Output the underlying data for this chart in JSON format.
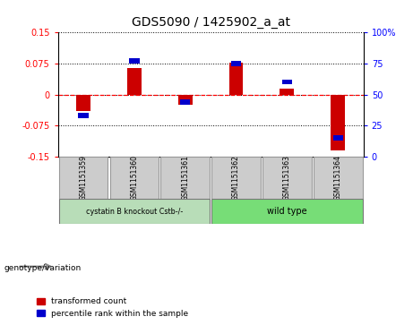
{
  "title": "GDS5090 / 1425902_a_at",
  "samples": [
    "GSM1151359",
    "GSM1151360",
    "GSM1151361",
    "GSM1151362",
    "GSM1151363",
    "GSM1151364"
  ],
  "red_values": [
    -0.04,
    0.065,
    -0.025,
    0.077,
    0.015,
    -0.135
  ],
  "blue_values": [
    33,
    77,
    44,
    75,
    60,
    15
  ],
  "group_colors": [
    "#b8ddb8",
    "#77dd77"
  ],
  "ylim_left": [
    -0.15,
    0.15
  ],
  "ylim_right": [
    0,
    100
  ],
  "yticks_left": [
    -0.15,
    -0.075,
    0,
    0.075,
    0.15
  ],
  "yticks_right": [
    0,
    25,
    50,
    75,
    100
  ],
  "red_color": "#cc0000",
  "blue_color": "#0000cc",
  "legend_red": "transformed count",
  "legend_blue": "percentile rank within the sample",
  "genotype_label": "genotype/variation",
  "group1_label": "cystatin B knockout Cstb-/-",
  "group2_label": "wild type"
}
